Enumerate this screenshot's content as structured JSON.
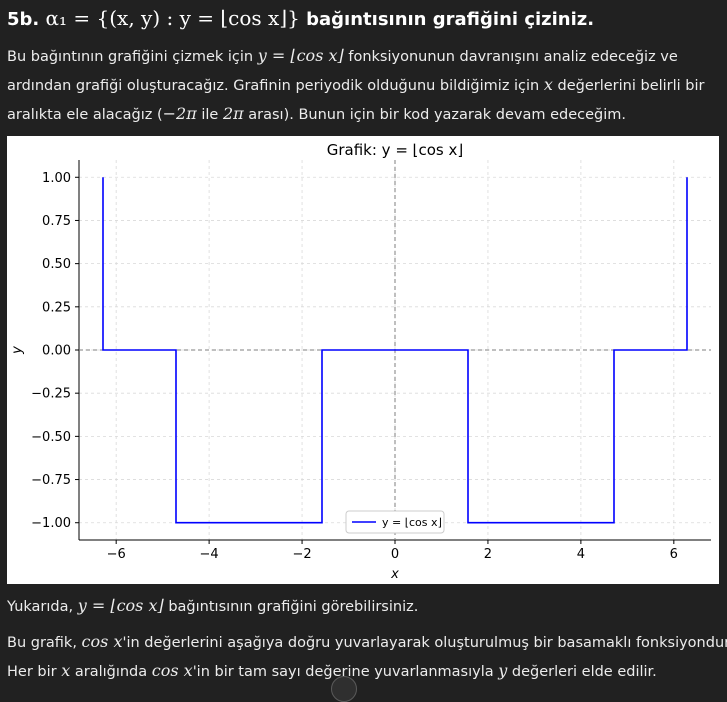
{
  "heading": {
    "prefix": "5b.",
    "math": "α₁ = {(x, y) : y = ⌊cos x⌋}",
    "suffix": "bağıntısının grafiğini çiziniz."
  },
  "intro": {
    "line1_a": "Bu bağıntının grafiğini çizmek için",
    "line1_math": "y = ⌊cos x⌋",
    "line1_b": "fonksiyonunun davranışını analiz edeceğiz ve",
    "line2_a": "ardından grafiği oluşturacağız. Grafinin periyodik olduğunu bildiğimiz için",
    "line2_math": "x",
    "line2_b": "değerlerini belirli bir",
    "line3_a": "aralıkta ele alacağız (",
    "line3_math1": "−2π",
    "line3_b": "ile",
    "line3_math2": "2π",
    "line3_c": "arası). Bunun için bir kod yazarak devam edeceğim."
  },
  "result": {
    "text_a": "Yukarıda,",
    "math": "y = ⌊cos x⌋",
    "text_b": "bağıntısının grafiğini görebilirsiniz."
  },
  "explanation": {
    "line1_a": "Bu grafik,",
    "line1_math": "cos x",
    "line1_b": "'in değerlerini aşağıya doğru yuvarlayarak oluşturulmuş bir basamaklı fonksiyondur.",
    "line2_a": "Her bir",
    "line2_math1": "x",
    "line2_b": "aralığında",
    "line2_math2": "cos x",
    "line2_c": "'in bir tam sayı değerine yuvarlanmasıyla",
    "line2_math3": "y",
    "line2_d": "değerleri elde edilir."
  },
  "chart_data": {
    "type": "line",
    "title": "Grafik: y = ⌊cos x⌋",
    "xlabel": "x",
    "ylabel": "y",
    "xlim": [
      -6.8,
      6.8
    ],
    "ylim": [
      -1.1,
      1.1
    ],
    "xticks": [
      -6,
      -4,
      -2,
      0,
      2,
      4,
      6
    ],
    "xtick_labels": [
      "−6",
      "−4",
      "−2",
      "0",
      "2",
      "4",
      "6"
    ],
    "yticks": [
      1.0,
      0.75,
      0.5,
      0.25,
      0.0,
      -0.25,
      -0.5,
      -0.75,
      -1.0
    ],
    "ytick_labels": [
      "1.00",
      "0.75",
      "0.50",
      "0.25",
      "0.00",
      "−0.25",
      "−0.50",
      "−0.75",
      "−1.00"
    ],
    "grid": true,
    "legend_position": "lower-center",
    "series": [
      {
        "name": "y = ⌊cos x⌋",
        "color": "#0000ff",
        "x": [
          -6.283,
          -6.283,
          -4.712,
          -4.712,
          -1.571,
          -1.571,
          1.571,
          1.571,
          4.712,
          4.712,
          6.283,
          6.283
        ],
        "y": [
          1,
          0,
          0,
          -1,
          -1,
          0,
          0,
          -1,
          -1,
          0,
          0,
          1
        ]
      }
    ],
    "reference_lines": {
      "horizontal_y": 0,
      "vertical_x": 0,
      "style": "dashed",
      "color": "#7f7f7f"
    }
  }
}
